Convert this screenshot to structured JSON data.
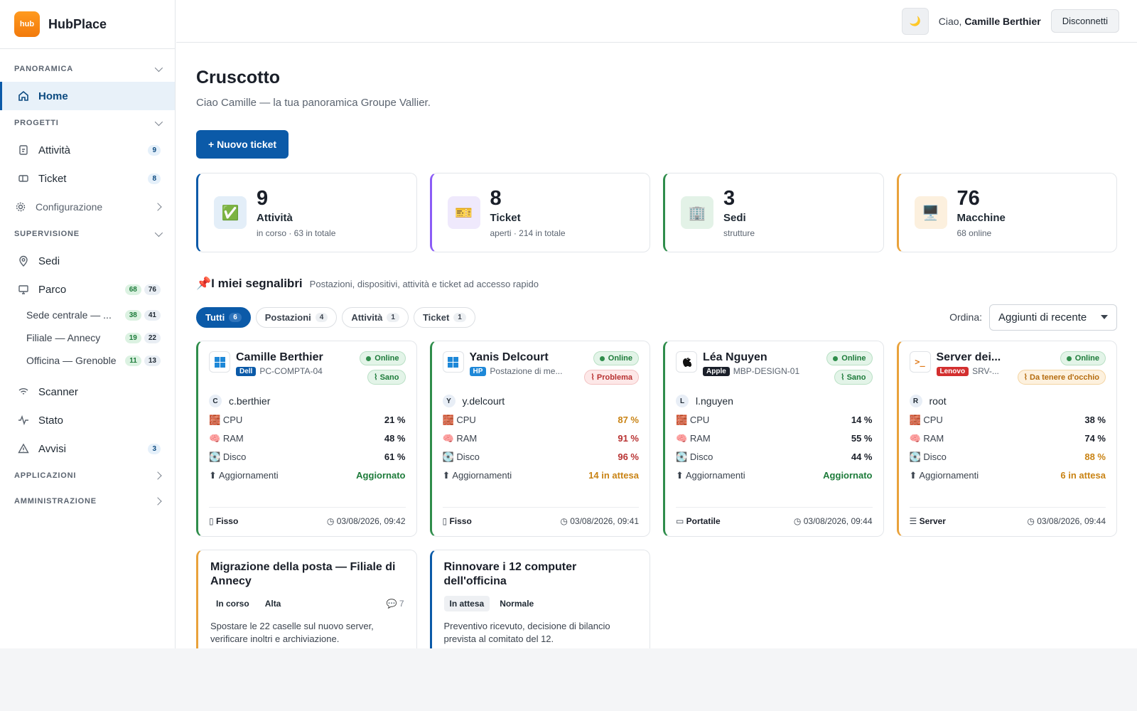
{
  "brand": {
    "logo": "hub",
    "name": "HubPlace"
  },
  "sidebar": {
    "panoramica": "PANORAMICA",
    "home": "Home",
    "progetti": "PROGETTI",
    "attivita": "Attività",
    "attivita_count": "9",
    "ticket": "Ticket",
    "ticket_count": "8",
    "configurazione": "Configurazione",
    "supervisione": "SUPERVISIONE",
    "sedi": "Sedi",
    "parco": "Parco",
    "parco_online": "68",
    "parco_total": "76",
    "sites": [
      {
        "label": "Sede centrale — ...",
        "online": "38",
        "total": "41"
      },
      {
        "label": "Filiale — Annecy",
        "online": "19",
        "total": "22"
      },
      {
        "label": "Officina — Grenoble",
        "online": "11",
        "total": "13"
      }
    ],
    "scanner": "Scanner",
    "stato": "Stato",
    "avvisi": "Avvisi",
    "avvisi_count": "3",
    "applicazioni": "APPLICAZIONI",
    "amministrazione": "AMMINISTRAZIONE"
  },
  "topbar": {
    "greeting": "Ciao,",
    "user": "Camille Berthier",
    "logout": "Disconnetti"
  },
  "page": {
    "title": "Cruscotto",
    "subtitle": "Ciao Camille — la tua panoramica Groupe Vallier.",
    "new_ticket": "+ Nuovo ticket"
  },
  "stats": [
    {
      "num": "9",
      "label": "Attività",
      "desc": "in corso · 63 in totale",
      "icon": "✅",
      "color": "#0b5aa8"
    },
    {
      "num": "8",
      "label": "Ticket",
      "desc": "aperti · 214 in totale",
      "icon": "🎫",
      "color": "#8b5cf6"
    },
    {
      "num": "3",
      "label": "Sedi",
      "desc": "strutture",
      "icon": "🏢",
      "color": "#2f8d4b"
    },
    {
      "num": "76",
      "label": "Macchine",
      "desc": "68 online",
      "icon": "🖥️",
      "color": "#e9a23b"
    }
  ],
  "bookmarks": {
    "pin": "📌",
    "title": "I miei segnalibri",
    "desc": "Postazioni, dispositivi, attività e ticket ad accesso rapido",
    "filters": [
      {
        "label": "Tutti",
        "count": "6"
      },
      {
        "label": "Postazioni",
        "count": "4"
      },
      {
        "label": "Attività",
        "count": "1"
      },
      {
        "label": "Ticket",
        "count": "1"
      }
    ],
    "sort_label": "Ordina:",
    "sort_value": "Aggiunti di recente"
  },
  "metric_labels": {
    "cpu": "CPU",
    "ram": "RAM",
    "disk": "Disco",
    "updates": "Aggiornamenti",
    "cpu_icon": "🧱",
    "ram_icon": "🧠",
    "disk_icon": "💽",
    "upd_icon": "⬆"
  },
  "devices": [
    {
      "name": "Camille Berthier",
      "brand": "Dell",
      "brand_color": "#0b5aa8",
      "model": "PC-COMPTA-04",
      "status": "Online",
      "health": "Sano",
      "user_initial": "C",
      "user": "c.berthier",
      "cpu": "21 %",
      "ram": "48 %",
      "disk": "61 %",
      "updates": "Aggiornato",
      "type": "Fisso",
      "date": "03/08/2026, 09:42"
    },
    {
      "name": "Yanis Delcourt",
      "brand": "HP",
      "brand_color": "#1e88d8",
      "model": "Postazione di me...",
      "status": "Online",
      "health": "Problema",
      "user_initial": "Y",
      "user": "y.delcourt",
      "cpu": "87 %",
      "ram": "91 %",
      "disk": "96 %",
      "updates": "14 in attesa",
      "type": "Fisso",
      "date": "03/08/2026, 09:41"
    },
    {
      "name": "Léa Nguyen",
      "brand": "Apple",
      "brand_color": "#1a1f29",
      "model": "MBP-DESIGN-01",
      "status": "Online",
      "health": "Sano",
      "user_initial": "L",
      "user": "l.nguyen",
      "cpu": "14 %",
      "ram": "55 %",
      "disk": "44 %",
      "updates": "Aggiornato",
      "type": "Portatile",
      "date": "03/08/2026, 09:44"
    },
    {
      "name": "Server dei...",
      "brand": "Lenovo",
      "brand_color": "#d32f2f",
      "model": "SRV-...",
      "status": "Online",
      "health": "Da tenere d'occhio",
      "user_initial": "R",
      "user": "root",
      "cpu": "38 %",
      "ram": "74 %",
      "disk": "88 %",
      "updates": "6 in attesa",
      "type": "Server",
      "date": "03/08/2026, 09:44"
    }
  ],
  "tasks": [
    {
      "title": "Migrazione della posta — Filiale di Annecy",
      "status": "In corso",
      "priority": "Alta",
      "comments": "7",
      "desc": "Spostare le 22 caselle sul nuovo server, verificare inoltri e archiviazione."
    },
    {
      "title": "Rinnovare i 12 computer dell'officina",
      "status": "In attesa",
      "priority": "Normale",
      "desc": "Preventivo ricevuto, decisione di bilancio prevista al comitato del 12."
    }
  ]
}
